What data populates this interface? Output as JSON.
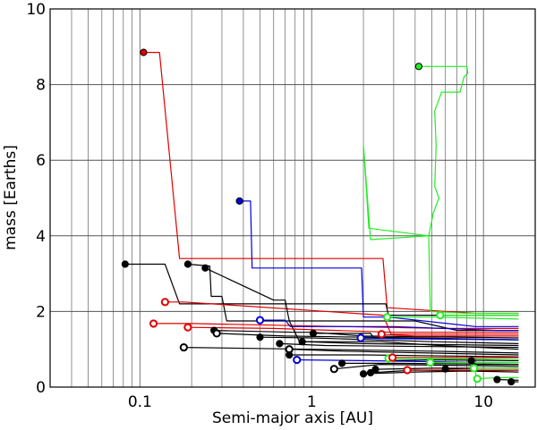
{
  "chart_data": {
    "type": "line",
    "title": "",
    "xlabel": "Semi-major axis [AU]",
    "ylabel": "mass [Earths]",
    "x_scale": "log",
    "xlim": [
      0.03,
      20
    ],
    "ylim": [
      0,
      10
    ],
    "x_ticks": [
      {
        "value": 0.1,
        "label": "0.1"
      },
      {
        "value": 1,
        "label": "1"
      },
      {
        "value": 10,
        "label": "10"
      }
    ],
    "y_ticks": [
      {
        "value": 0,
        "label": "0"
      },
      {
        "value": 2,
        "label": "2"
      },
      {
        "value": 4,
        "label": "4"
      },
      {
        "value": 6,
        "label": "6"
      },
      {
        "value": 8,
        "label": "8"
      },
      {
        "value": 10,
        "label": "10"
      }
    ],
    "grid": true,
    "colors": {
      "red": "#e00000",
      "blue": "#0000dd",
      "green": "#22ee22",
      "black": "#000000"
    },
    "tracks": [
      {
        "color": "red",
        "points": [
          [
            0.105,
            8.85
          ],
          [
            0.13,
            8.85
          ],
          [
            0.17,
            3.4
          ],
          [
            2.6,
            3.4
          ],
          [
            2.75,
            2.1
          ],
          [
            9.0,
            1.95
          ],
          [
            16,
            1.95
          ]
        ]
      },
      {
        "color": "blue",
        "points": [
          [
            0.38,
            4.92
          ],
          [
            0.44,
            4.92
          ],
          [
            0.45,
            3.15
          ],
          [
            1.95,
            3.15
          ],
          [
            2.0,
            1.85
          ],
          [
            2.8,
            1.85
          ],
          [
            9.0,
            1.6
          ],
          [
            16,
            1.6
          ]
        ]
      },
      {
        "color": "green",
        "points": [
          [
            4.2,
            8.48
          ],
          [
            8.0,
            8.48
          ],
          [
            8.1,
            8.3
          ],
          [
            7.7,
            8.2
          ],
          [
            7.3,
            7.8
          ],
          [
            5.7,
            7.8
          ],
          [
            5.2,
            7.3
          ],
          [
            5.3,
            6.4
          ],
          [
            5.2,
            5.3
          ],
          [
            5.5,
            5.0
          ],
          [
            5.1,
            4.6
          ],
          [
            4.8,
            4.0
          ],
          [
            2.2,
            3.9
          ],
          [
            2.0,
            6.4
          ],
          [
            2.15,
            4.2
          ],
          [
            4.8,
            4.0
          ],
          [
            4.9,
            2.0
          ],
          [
            8.0,
            1.95
          ],
          [
            16,
            1.95
          ]
        ]
      },
      {
        "color": "black",
        "points": [
          [
            0.082,
            3.25
          ],
          [
            0.14,
            3.25
          ],
          [
            0.17,
            2.2
          ],
          [
            2.7,
            2.2
          ],
          [
            2.8,
            1.9
          ],
          [
            16,
            1.9
          ]
        ]
      },
      {
        "color": "black",
        "points": [
          [
            0.19,
            3.25
          ],
          [
            0.255,
            3.2
          ],
          [
            0.26,
            2.4
          ],
          [
            0.3,
            2.4
          ],
          [
            0.32,
            1.75
          ],
          [
            4.0,
            1.75
          ],
          [
            7.0,
            1.5
          ],
          [
            16,
            1.5
          ]
        ]
      },
      {
        "color": "red",
        "points": [
          [
            0.14,
            2.25
          ],
          [
            0.18,
            2.25
          ],
          [
            2.6,
            1.9
          ],
          [
            2.9,
            1.4
          ],
          [
            16,
            1.4
          ]
        ]
      },
      {
        "color": "red",
        "points": [
          [
            0.12,
            1.68
          ],
          [
            0.2,
            1.68
          ],
          [
            1.5,
            1.6
          ],
          [
            6.0,
            1.55
          ],
          [
            16,
            1.55
          ]
        ]
      },
      {
        "color": "blue",
        "points": [
          [
            0.5,
            1.77
          ],
          [
            0.7,
            1.77
          ],
          [
            0.75,
            1.6
          ],
          [
            3.0,
            1.6
          ],
          [
            12,
            1.5
          ],
          [
            16,
            1.5
          ]
        ]
      },
      {
        "color": "black",
        "points": [
          [
            0.24,
            3.15
          ],
          [
            0.6,
            2.3
          ],
          [
            0.7,
            2.3
          ],
          [
            0.74,
            1.75
          ],
          [
            0.85,
            1.2
          ],
          [
            2.5,
            1.2
          ],
          [
            5.5,
            1.1
          ],
          [
            16,
            1.0
          ]
        ]
      },
      {
        "color": "black",
        "points": [
          [
            0.27,
            1.5
          ],
          [
            0.8,
            1.45
          ],
          [
            1.0,
            1.45
          ],
          [
            2.0,
            1.35
          ],
          [
            16,
            1.3
          ]
        ]
      },
      {
        "color": "red",
        "points": [
          [
            0.19,
            1.58
          ],
          [
            0.6,
            1.55
          ],
          [
            3.0,
            1.45
          ],
          [
            16,
            1.45
          ]
        ]
      },
      {
        "color": "black",
        "points": [
          [
            0.28,
            1.42
          ],
          [
            0.7,
            1.35
          ],
          [
            4.0,
            1.3
          ],
          [
            16,
            1.25
          ]
        ]
      },
      {
        "color": "black",
        "points": [
          [
            0.5,
            1.32
          ],
          [
            1.0,
            1.3
          ],
          [
            5.0,
            1.2
          ],
          [
            16,
            1.15
          ]
        ]
      },
      {
        "color": "black",
        "points": [
          [
            0.18,
            1.05
          ],
          [
            1.0,
            1.0
          ],
          [
            5.0,
            0.95
          ],
          [
            16,
            0.9
          ]
        ]
      },
      {
        "color": "black",
        "points": [
          [
            0.65,
            1.15
          ],
          [
            1.2,
            1.1
          ],
          [
            16,
            1.05
          ]
        ]
      },
      {
        "color": "black",
        "points": [
          [
            0.88,
            1.2
          ],
          [
            2.0,
            1.15
          ],
          [
            16,
            1.1
          ]
        ]
      },
      {
        "color": "black",
        "points": [
          [
            1.02,
            1.42
          ],
          [
            2.2,
            1.42
          ],
          [
            2.3,
            1.3
          ],
          [
            16,
            1.25
          ]
        ]
      },
      {
        "color": "blue",
        "points": [
          [
            1.93,
            1.3
          ],
          [
            3.0,
            1.28
          ],
          [
            16,
            1.25
          ]
        ]
      },
      {
        "color": "blue",
        "points": [
          [
            0.82,
            0.72
          ],
          [
            2.0,
            0.7
          ],
          [
            10,
            0.65
          ],
          [
            16,
            0.65
          ]
        ]
      },
      {
        "color": "black",
        "points": [
          [
            0.75,
            1.0
          ],
          [
            1.5,
            0.95
          ],
          [
            16,
            0.85
          ]
        ]
      },
      {
        "color": "black",
        "points": [
          [
            0.74,
            0.85
          ],
          [
            2.0,
            0.85
          ],
          [
            16,
            0.8
          ]
        ]
      },
      {
        "color": "black",
        "points": [
          [
            1.35,
            0.48
          ],
          [
            2.5,
            0.6
          ],
          [
            16,
            0.55
          ]
        ]
      },
      {
        "color": "black",
        "points": [
          [
            1.5,
            0.63
          ],
          [
            3.0,
            0.63
          ],
          [
            16,
            0.6
          ]
        ]
      },
      {
        "color": "black",
        "points": [
          [
            2.0,
            0.35
          ],
          [
            4.0,
            0.4
          ],
          [
            16,
            0.45
          ]
        ]
      },
      {
        "color": "black",
        "points": [
          [
            2.2,
            0.38
          ],
          [
            4.0,
            0.45
          ],
          [
            16,
            0.4
          ]
        ]
      },
      {
        "color": "black",
        "points": [
          [
            2.35,
            0.47
          ],
          [
            5.0,
            0.5
          ],
          [
            16,
            0.5
          ]
        ]
      },
      {
        "color": "black",
        "points": [
          [
            2.75,
            0.7
          ],
          [
            5.0,
            0.72
          ],
          [
            16,
            0.7
          ]
        ]
      },
      {
        "color": "black",
        "points": [
          [
            6.0,
            0.48
          ],
          [
            9.0,
            0.5
          ],
          [
            16,
            0.5
          ]
        ]
      },
      {
        "color": "black",
        "points": [
          [
            12,
            0.2
          ],
          [
            16,
            0.18
          ]
        ]
      },
      {
        "color": "black",
        "points": [
          [
            14.5,
            0.14
          ],
          [
            16,
            0.14
          ]
        ]
      },
      {
        "color": "black",
        "points": [
          [
            8.5,
            0.7
          ],
          [
            9.0,
            0.6
          ],
          [
            16,
            0.6
          ]
        ]
      },
      {
        "color": "red",
        "points": [
          [
            2.55,
            1.4
          ],
          [
            4.0,
            1.35
          ],
          [
            16,
            1.35
          ]
        ]
      },
      {
        "color": "red",
        "points": [
          [
            2.95,
            0.78
          ],
          [
            5.0,
            0.78
          ],
          [
            16,
            0.78
          ]
        ]
      },
      {
        "color": "red",
        "points": [
          [
            3.6,
            0.45
          ],
          [
            6.0,
            0.45
          ],
          [
            16,
            0.45
          ]
        ]
      },
      {
        "color": "green",
        "points": [
          [
            2.75,
            1.85
          ],
          [
            5.0,
            1.85
          ],
          [
            16,
            1.8
          ]
        ]
      },
      {
        "color": "green",
        "points": [
          [
            5.6,
            1.9
          ],
          [
            8.0,
            1.9
          ],
          [
            16,
            1.9
          ]
        ]
      },
      {
        "color": "green",
        "points": [
          [
            2.8,
            0.76
          ],
          [
            5.0,
            0.76
          ],
          [
            16,
            0.72
          ]
        ]
      },
      {
        "color": "green",
        "points": [
          [
            4.9,
            0.65
          ],
          [
            8.0,
            0.65
          ],
          [
            16,
            0.65
          ]
        ]
      },
      {
        "color": "green",
        "points": [
          [
            8.8,
            0.5
          ],
          [
            12,
            0.5
          ],
          [
            16,
            0.5
          ]
        ]
      },
      {
        "color": "green",
        "points": [
          [
            9.2,
            0.22
          ],
          [
            12,
            0.25
          ],
          [
            16,
            0.25
          ]
        ]
      }
    ],
    "markers": [
      {
        "x": 0.105,
        "y": 8.85,
        "color": "red",
        "filled": true
      },
      {
        "x": 0.38,
        "y": 4.92,
        "color": "blue",
        "filled": true
      },
      {
        "x": 4.2,
        "y": 8.48,
        "color": "green",
        "filled": true
      },
      {
        "x": 0.082,
        "y": 3.25,
        "color": "black",
        "filled": true
      },
      {
        "x": 0.19,
        "y": 3.25,
        "color": "black",
        "filled": true
      },
      {
        "x": 0.24,
        "y": 3.15,
        "color": "black",
        "filled": true
      },
      {
        "x": 0.14,
        "y": 2.25,
        "color": "red",
        "filled": false
      },
      {
        "x": 0.12,
        "y": 1.68,
        "color": "red",
        "filled": false
      },
      {
        "x": 0.19,
        "y": 1.58,
        "color": "red",
        "filled": false
      },
      {
        "x": 0.5,
        "y": 1.77,
        "color": "blue",
        "filled": false
      },
      {
        "x": 0.27,
        "y": 1.5,
        "color": "black",
        "filled": true
      },
      {
        "x": 0.28,
        "y": 1.42,
        "color": "black",
        "filled": false
      },
      {
        "x": 0.5,
        "y": 1.32,
        "color": "black",
        "filled": true
      },
      {
        "x": 0.18,
        "y": 1.05,
        "color": "black",
        "filled": false
      },
      {
        "x": 0.65,
        "y": 1.15,
        "color": "black",
        "filled": true
      },
      {
        "x": 0.74,
        "y": 1.0,
        "color": "black",
        "filled": false
      },
      {
        "x": 0.74,
        "y": 0.85,
        "color": "black",
        "filled": true
      },
      {
        "x": 0.88,
        "y": 1.2,
        "color": "black",
        "filled": true
      },
      {
        "x": 1.02,
        "y": 1.42,
        "color": "black",
        "filled": true
      },
      {
        "x": 0.82,
        "y": 0.72,
        "color": "blue",
        "filled": false
      },
      {
        "x": 1.93,
        "y": 1.3,
        "color": "blue",
        "filled": false
      },
      {
        "x": 1.35,
        "y": 0.48,
        "color": "black",
        "filled": false
      },
      {
        "x": 1.5,
        "y": 0.63,
        "color": "black",
        "filled": true
      },
      {
        "x": 2.0,
        "y": 0.35,
        "color": "black",
        "filled": true
      },
      {
        "x": 2.2,
        "y": 0.38,
        "color": "black",
        "filled": true
      },
      {
        "x": 2.35,
        "y": 0.47,
        "color": "black",
        "filled": true
      },
      {
        "x": 2.55,
        "y": 1.4,
        "color": "red",
        "filled": false
      },
      {
        "x": 2.75,
        "y": 1.85,
        "color": "green",
        "filled": false
      },
      {
        "x": 2.8,
        "y": 0.76,
        "color": "green",
        "filled": false
      },
      {
        "x": 2.95,
        "y": 0.78,
        "color": "red",
        "filled": false
      },
      {
        "x": 3.6,
        "y": 0.45,
        "color": "red",
        "filled": false
      },
      {
        "x": 4.9,
        "y": 0.65,
        "color": "green",
        "filled": false
      },
      {
        "x": 5.6,
        "y": 1.9,
        "color": "green",
        "filled": false
      },
      {
        "x": 6.0,
        "y": 0.48,
        "color": "black",
        "filled": true
      },
      {
        "x": 8.5,
        "y": 0.7,
        "color": "black",
        "filled": true
      },
      {
        "x": 8.8,
        "y": 0.5,
        "color": "green",
        "filled": false
      },
      {
        "x": 9.2,
        "y": 0.22,
        "color": "green",
        "filled": false
      },
      {
        "x": 12,
        "y": 0.2,
        "color": "black",
        "filled": true
      },
      {
        "x": 14.5,
        "y": 0.14,
        "color": "black",
        "filled": true
      }
    ]
  }
}
